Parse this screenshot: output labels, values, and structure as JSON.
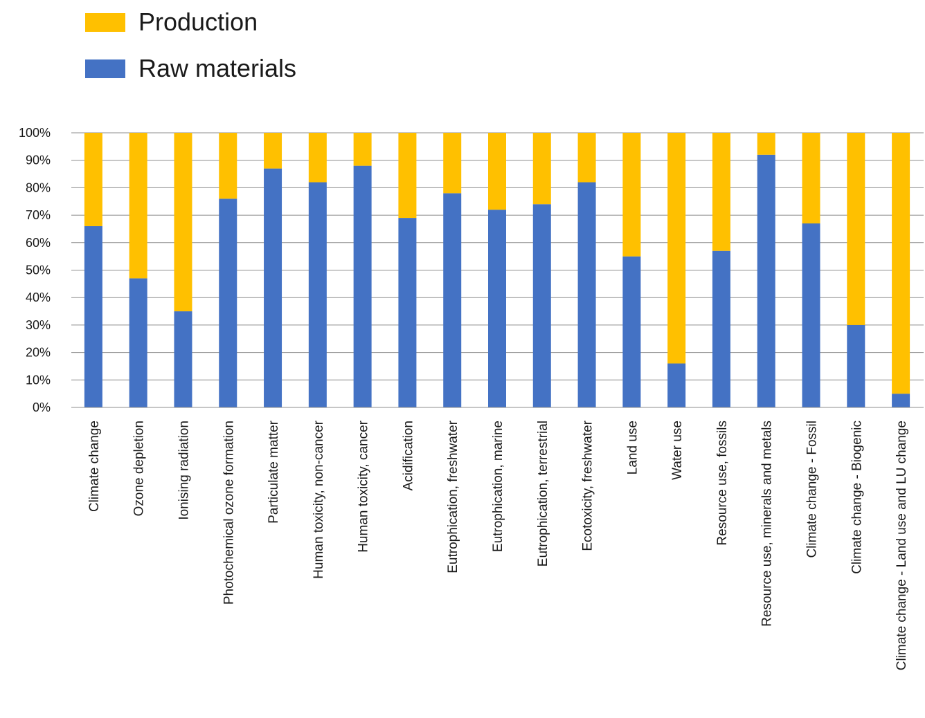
{
  "chart_data": {
    "type": "bar",
    "stacked": true,
    "percent": true,
    "title": "",
    "xlabel": "",
    "ylabel": "",
    "ylim": [
      0,
      100
    ],
    "yticks": [
      "0%",
      "10%",
      "20%",
      "30%",
      "40%",
      "50%",
      "60%",
      "70%",
      "80%",
      "90%",
      "100%"
    ],
    "grid": true,
    "legend_position": "top-left",
    "categories": [
      "Climate change",
      "Ozone depletion",
      "Ionising radiation",
      "Photochemical ozone formation",
      "Particulate matter",
      "Human toxicity, non-cancer",
      "Human toxicity, cancer",
      "Acidification",
      "Eutrophication, freshwater",
      "Eutrophication, marine",
      "Eutrophication, terrestrial",
      "Ecotoxicity, freshwater",
      "Land use",
      "Water use",
      "Resource use, fossils",
      "Resource use, minerals and metals",
      "Climate change - Fossil",
      "Climate change - Biogenic",
      "Climate change - Land use and LU change"
    ],
    "series": [
      {
        "name": "Raw materials",
        "color": "#4472C4",
        "values": [
          66,
          47,
          35,
          76,
          87,
          82,
          88,
          69,
          78,
          72,
          74,
          82,
          55,
          16,
          57,
          92,
          67,
          30,
          5
        ]
      },
      {
        "name": "Production",
        "color": "#FFC000",
        "values": [
          34,
          53,
          65,
          24,
          13,
          18,
          12,
          31,
          22,
          28,
          26,
          18,
          45,
          84,
          43,
          8,
          33,
          70,
          95
        ]
      }
    ],
    "legend": [
      {
        "name": "Production",
        "color": "#FFC000"
      },
      {
        "name": "Raw materials",
        "color": "#4472C4"
      }
    ]
  }
}
